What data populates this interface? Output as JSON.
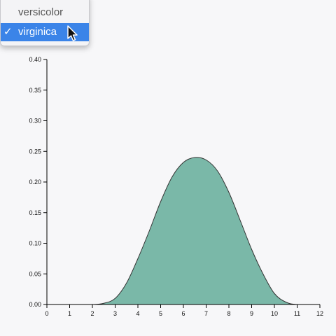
{
  "dropdown": {
    "options": [
      {
        "label": "versicolor",
        "selected": false
      },
      {
        "label": "virginica",
        "selected": true
      }
    ],
    "check_glyph": "✓",
    "highlight_color": "#3b84e8"
  },
  "cursor": {
    "icon": "arrow-pointer-icon"
  },
  "chart_data": {
    "type": "area",
    "title": "",
    "xlabel": "",
    "ylabel": "",
    "xlim": [
      0,
      12
    ],
    "ylim": [
      0,
      0.4
    ],
    "grid": false,
    "x_ticks": [
      0,
      1,
      2,
      3,
      4,
      5,
      6,
      7,
      8,
      9,
      10,
      11,
      12
    ],
    "y_ticks": [
      "0.00",
      "0.05",
      "0.10",
      "0.15",
      "0.20",
      "0.25",
      "0.30",
      "0.35",
      "0.40"
    ],
    "fill_color": "#7ab8a8",
    "stroke_color": "#333333",
    "series": [
      {
        "x": [
          0,
          1,
          2,
          2.5,
          3,
          3.5,
          4,
          4.5,
          5,
          5.5,
          6,
          6.5,
          7,
          7.5,
          8,
          8.5,
          9,
          9.5,
          10,
          10.5,
          11,
          12
        ],
        "values": [
          0,
          0,
          0,
          0.002,
          0.01,
          0.035,
          0.075,
          0.12,
          0.168,
          0.208,
          0.232,
          0.24,
          0.236,
          0.218,
          0.183,
          0.137,
          0.09,
          0.05,
          0.018,
          0.004,
          0,
          0
        ]
      }
    ]
  }
}
